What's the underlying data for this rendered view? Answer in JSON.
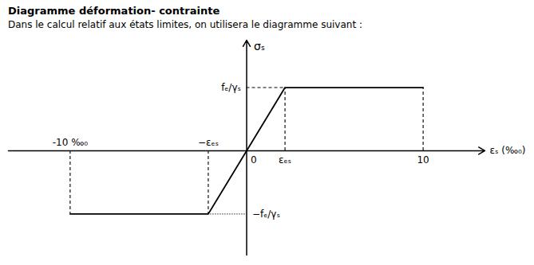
{
  "chart_data": {
    "type": "line",
    "title": "Diagramme déformation- contrainte",
    "subtitle": "Dans le calcul relatif aux états limites, on utilisera le diagramme suivant :",
    "xlabel": "εₛ (‰₀)",
    "ylabel": "σₛ",
    "x": [
      -10,
      -2.174,
      2.174,
      10
    ],
    "values": [
      -1.0,
      -1.0,
      1.0,
      1.0
    ],
    "xlim": [
      -13.5,
      13.5
    ],
    "ylim": [
      -1.65,
      1.75
    ],
    "tick_labels": false,
    "color": "#000000",
    "annotations": [
      {
        "text": "0",
        "x": 0
      },
      {
        "text": "εₑₛ",
        "x": 2.174
      },
      {
        "text": "−εₑₛ",
        "x": -2.174
      },
      {
        "text": "10",
        "x": 10
      },
      {
        "text": "-10 ‰₀",
        "x": -10
      },
      {
        "text": "fₑ/γₛ",
        "y": 1.0
      },
      {
        "text": "−fₑ/γₛ",
        "y": -1.0
      }
    ]
  }
}
